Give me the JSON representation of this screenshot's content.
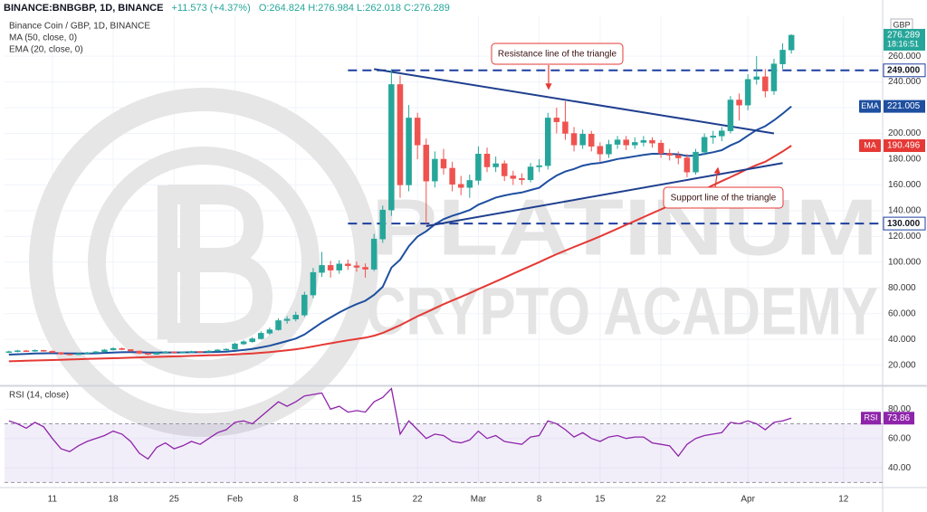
{
  "header": {
    "symbol": "BINANCE:BNBGBP, 1D, BINANCE",
    "change": "+11.573 (+4.37%)",
    "ohlc": "O:264.824 H:276.984 L:262.018 C:276.289"
  },
  "chart_data": [
    {
      "type": "candlestick",
      "title": "Binance Coin / GBP, 1D, BINANCE",
      "currency": "GBP",
      "countdown": "18:16:51",
      "watermark": [
        "PLATINUM",
        "CRYPTO ACADEMY"
      ],
      "grid": true,
      "up_color": "#26a69a",
      "down_color": "#ef5350",
      "xlim": [
        -0.5,
        100.5
      ],
      "xticks": [
        {
          "value": 5,
          "label": "11"
        },
        {
          "value": 12,
          "label": "18"
        },
        {
          "value": 19,
          "label": "25"
        },
        {
          "value": 26,
          "label": "Feb"
        },
        {
          "value": 33,
          "label": "8"
        },
        {
          "value": 40,
          "label": "15"
        },
        {
          "value": 47,
          "label": "22"
        },
        {
          "value": 54,
          "label": "Mar"
        },
        {
          "value": 61,
          "label": "8"
        },
        {
          "value": 68,
          "label": "15"
        },
        {
          "value": 75,
          "label": "22"
        },
        {
          "value": 85,
          "label": "Apr"
        },
        {
          "value": 96,
          "label": "12"
        }
      ],
      "ylim": [
        5,
        291
      ],
      "yticks": [
        {
          "value": 20,
          "label": "20.000"
        },
        {
          "value": 40,
          "label": "40.000"
        },
        {
          "value": 60,
          "label": "60.000"
        },
        {
          "value": 80,
          "label": "80.000"
        },
        {
          "value": 100,
          "label": "100.000"
        },
        {
          "value": 120,
          "label": "120.000"
        },
        {
          "value": 140,
          "label": "140.000"
        },
        {
          "value": 160,
          "label": "160.000"
        },
        {
          "value": 180,
          "label": "180.000"
        },
        {
          "value": 200,
          "label": "200.000"
        },
        {
          "value": 220,
          "label": "220.000"
        },
        {
          "value": 240,
          "label": "240.000"
        },
        {
          "value": 260,
          "label": "260.000"
        }
      ],
      "open": [
        30.0,
        30.5,
        31.2,
        30.8,
        31.5,
        30.9,
        29.8,
        28.6,
        28.1,
        29.0,
        29.6,
        30.4,
        31.8,
        33.0,
        32.1,
        31.0,
        29.2,
        28.4,
        29.6,
        30.3,
        29.7,
        30.1,
        30.6,
        30.2,
        31.0,
        31.8,
        32.4,
        36.5,
        38.2,
        40.5,
        44.8,
        47.5,
        54.6,
        55.8,
        58.9,
        74.5,
        92.0,
        97.5,
        93.8,
        98.6,
        97.2,
        96.0,
        94.5,
        118.0,
        140.5,
        238.0,
        160.0,
        212.0,
        191.0,
        163.0,
        180.0,
        173.0,
        160.5,
        158.0,
        163.5,
        184.0,
        174.0,
        176.5,
        167.0,
        165.0,
        164.0,
        174.0,
        175.0,
        212.0,
        209.0,
        200.0,
        191.0,
        199.5,
        190.0,
        184.0,
        191.5,
        195.0,
        191.0,
        193.0,
        194.5,
        192.5,
        184.5,
        183.0,
        181.0,
        170.0,
        185.5,
        197.0,
        198.0,
        202.0,
        226.0,
        222.0,
        242.0,
        244.0,
        233.0,
        254.0,
        264.824
      ],
      "high": [
        31.2,
        31.9,
        31.8,
        32.2,
        31.9,
        31.3,
        30.2,
        29.1,
        29.6,
        30.2,
        31.0,
        32.5,
        33.9,
        33.6,
        32.4,
        31.3,
        29.7,
        30.1,
        31.0,
        30.7,
        30.7,
        31.2,
        31.0,
        31.6,
        32.5,
        33.2,
        37.5,
        39.4,
        41.8,
        46.3,
        49.2,
        56.4,
        58.0,
        61.5,
        77.0,
        95.5,
        108.0,
        101.0,
        101.5,
        102.0,
        100.5,
        99.0,
        122.0,
        144.0,
        250.0,
        245.0,
        222.0,
        216.0,
        196.0,
        186.0,
        188.0,
        178.0,
        167.0,
        168.0,
        190.0,
        189.0,
        182.0,
        179.0,
        171.0,
        169.0,
        177.0,
        180.0,
        216.0,
        220.0,
        225.0,
        205.0,
        203.0,
        202.0,
        193.0,
        195.0,
        198.0,
        198.0,
        197.0,
        198.0,
        197.0,
        195.0,
        188.0,
        186.0,
        184.0,
        188.0,
        200.0,
        202.0,
        205.0,
        229.0,
        231.0,
        246.0,
        260.0,
        250.0,
        258.0,
        270.0,
        276.984
      ],
      "low": [
        29.4,
        30.0,
        30.3,
        30.4,
        30.4,
        29.3,
        28.0,
        27.5,
        27.8,
        28.7,
        29.2,
        30.0,
        31.4,
        31.6,
        30.5,
        28.6,
        27.8,
        28.0,
        29.2,
        29.1,
        29.3,
        29.8,
        29.7,
        29.9,
        30.6,
        31.3,
        32.0,
        35.6,
        37.4,
        39.8,
        43.6,
        46.8,
        52.1,
        54.0,
        57.5,
        72.0,
        88.5,
        88.0,
        91.0,
        94.0,
        92.5,
        88.0,
        93.0,
        115.0,
        136.0,
        150.0,
        155.0,
        180.0,
        130.0,
        158.0,
        168.0,
        155.0,
        152.0,
        150.0,
        160.0,
        170.0,
        170.0,
        163.0,
        160.0,
        160.0,
        162.0,
        170.0,
        172.0,
        200.0,
        195.0,
        186.0,
        188.0,
        186.0,
        178.0,
        181.0,
        188.0,
        187.0,
        188.0,
        190.0,
        189.0,
        181.0,
        179.0,
        176.0,
        166.0,
        168.0,
        183.0,
        192.0,
        194.0,
        200.0,
        210.0,
        218.0,
        238.0,
        228.0,
        230.0,
        250.0,
        262.018
      ],
      "close": [
        30.5,
        31.2,
        30.8,
        31.5,
        30.9,
        29.8,
        28.6,
        28.1,
        29.0,
        29.6,
        30.4,
        31.8,
        33.0,
        32.1,
        31.0,
        29.2,
        28.4,
        29.6,
        30.3,
        29.7,
        30.1,
        30.6,
        30.2,
        31.0,
        31.8,
        32.4,
        36.5,
        38.2,
        40.5,
        44.8,
        47.5,
        54.6,
        55.8,
        58.9,
        74.5,
        92.0,
        97.5,
        93.8,
        98.6,
        97.2,
        96.0,
        94.5,
        118.0,
        140.5,
        238.0,
        160.0,
        212.0,
        191.0,
        163.0,
        180.0,
        173.0,
        160.5,
        158.0,
        163.5,
        184.0,
        174.0,
        176.5,
        167.0,
        165.0,
        164.0,
        174.0,
        175.0,
        212.0,
        209.0,
        200.0,
        191.0,
        199.5,
        190.0,
        184.0,
        191.5,
        195.0,
        191.0,
        193.0,
        194.5,
        192.5,
        184.5,
        183.0,
        181.0,
        170.0,
        185.5,
        197.0,
        198.0,
        202.0,
        226.0,
        222.0,
        242.0,
        244.0,
        233.0,
        254.0,
        264.716,
        276.289
      ],
      "series": [
        {
          "name": "MA (50, close, 0)",
          "tag": "MA",
          "color": "#e53935",
          "values": [
            23.0,
            23.2,
            23.4,
            23.6,
            23.8,
            24.0,
            24.2,
            24.4,
            24.6,
            24.8,
            25.0,
            25.2,
            25.4,
            25.6,
            25.8,
            26.0,
            26.2,
            26.4,
            26.6,
            26.8,
            27.0,
            27.2,
            27.4,
            27.6,
            27.8,
            28.0,
            28.3,
            28.7,
            29.1,
            29.6,
            30.1,
            30.8,
            31.5,
            32.3,
            33.3,
            34.5,
            35.8,
            37.0,
            38.2,
            39.3,
            40.3,
            41.3,
            42.9,
            45.0,
            48.0,
            51.0,
            54.5,
            58.0,
            61.0,
            64.2,
            67.3,
            70.2,
            73.0,
            75.9,
            79.0,
            82.0,
            85.0,
            88.0,
            91.0,
            94.0,
            97.0,
            100.0,
            103.2,
            106.2,
            109.0,
            111.8,
            114.5,
            117.2,
            120.0,
            123.0,
            126.0,
            129.0,
            132.0,
            135.0,
            138.0,
            141.0,
            144.0,
            147.0,
            150.0,
            153.2,
            156.5,
            159.8,
            163.0,
            166.0,
            169.2,
            172.5,
            175.5,
            178.0,
            182.0,
            186.0,
            190.496
          ]
        },
        {
          "name": "EMA (20, close, 0)",
          "tag": "EMA",
          "color": "#1e4fa0",
          "values": [
            28.2,
            28.5,
            28.7,
            29.0,
            29.2,
            29.3,
            29.2,
            29.1,
            29.1,
            29.1,
            29.2,
            29.5,
            29.8,
            30.0,
            30.1,
            30.0,
            29.8,
            29.8,
            29.9,
            29.9,
            29.9,
            30.0,
            30.0,
            30.1,
            30.3,
            30.5,
            31.1,
            31.8,
            32.6,
            33.8,
            35.1,
            36.9,
            38.7,
            40.6,
            43.8,
            48.4,
            53.1,
            57.0,
            60.9,
            64.4,
            67.4,
            70.0,
            74.6,
            80.9,
            95.8,
            101.9,
            112.4,
            119.9,
            124.0,
            129.3,
            133.4,
            136.0,
            138.1,
            140.5,
            144.6,
            147.4,
            150.2,
            151.8,
            153.1,
            154.1,
            156.0,
            157.8,
            162.9,
            167.3,
            170.4,
            172.4,
            175.0,
            176.4,
            177.1,
            178.5,
            180.1,
            181.1,
            182.2,
            183.3,
            184.2,
            184.2,
            184.1,
            183.8,
            182.5,
            182.8,
            184.1,
            185.4,
            187.0,
            190.7,
            193.7,
            198.3,
            202.7,
            205.6,
            210.2,
            215.4,
            221.005
          ]
        }
      ],
      "levels": [
        {
          "value": 249,
          "label": "249.000"
        },
        {
          "value": 130,
          "label": "130.000"
        }
      ],
      "trendlines": [
        {
          "label": "Resistance line of the triangle",
          "x": [
            42,
            88
          ],
          "y": [
            250,
            200
          ]
        },
        {
          "label": "Support line of the triangle",
          "x": [
            48,
            89
          ],
          "y": [
            128,
            177
          ]
        }
      ]
    },
    {
      "type": "line",
      "title": "RSI (14, close)",
      "ylim": [
        29,
        95
      ],
      "yticks": [
        {
          "value": 40,
          "label": "40.00"
        },
        {
          "value": 60,
          "label": "60.00"
        },
        {
          "value": 80,
          "label": "80.00"
        }
      ],
      "band": [
        30,
        70
      ],
      "series": [
        {
          "name": "RSI",
          "color": "#8e24aa",
          "values": [
            72,
            70,
            67,
            71,
            68,
            60,
            53,
            51,
            55,
            58,
            60,
            62,
            65,
            63,
            58,
            50,
            46,
            54,
            57,
            53,
            55,
            58,
            56,
            60,
            64,
            66,
            71,
            72,
            70,
            75,
            80,
            85,
            82,
            85,
            89,
            90,
            91,
            80,
            82,
            78,
            79,
            78,
            85,
            88,
            94,
            63,
            72,
            66,
            60,
            63,
            62,
            58,
            57,
            59,
            65,
            60,
            62,
            58,
            57,
            56,
            61,
            62,
            72,
            70,
            66,
            61,
            64,
            60,
            58,
            61,
            62,
            60,
            61,
            61,
            57,
            56,
            55,
            48,
            56,
            60,
            62,
            63,
            64,
            71,
            70,
            72,
            70,
            66,
            71,
            72,
            73.86
          ]
        }
      ]
    }
  ]
}
